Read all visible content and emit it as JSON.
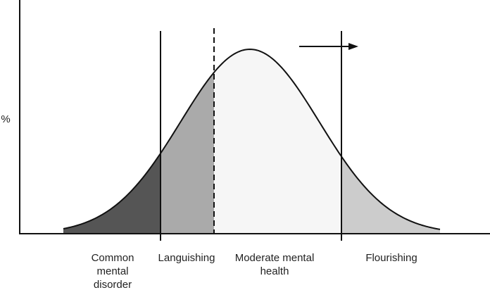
{
  "y_axis_label": "%",
  "regions": [
    {
      "label": "Common mental disorder"
    },
    {
      "label": "Languishing"
    },
    {
      "label": "Moderate mental health"
    },
    {
      "label": "Flourishing"
    }
  ]
}
